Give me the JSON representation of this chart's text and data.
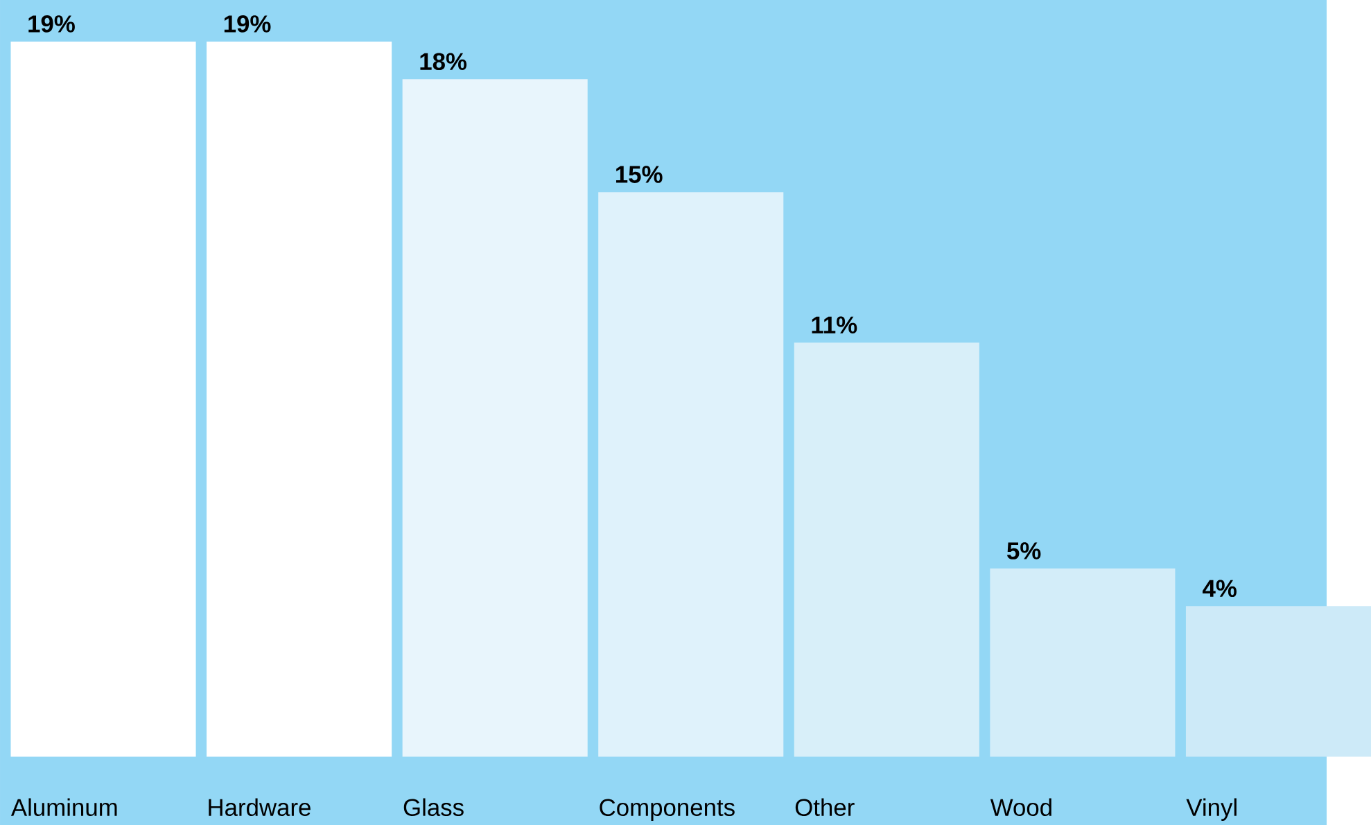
{
  "chart_data": {
    "type": "bar",
    "categories": [
      "Aluminum",
      "Hardware",
      "Glass",
      "Components",
      "Other",
      "Wood",
      "Vinyl"
    ],
    "values": [
      19,
      19,
      18,
      15,
      11,
      5,
      4
    ],
    "value_labels": [
      "19%",
      "19%",
      "18%",
      "15%",
      "11%",
      "5%",
      "4%"
    ],
    "colors": [
      "#ffffff",
      "#ffffff",
      "#e8f5fc",
      "#dff2fb",
      "#d8eff9",
      "#d3edf9",
      "#cdeaf8"
    ]
  }
}
